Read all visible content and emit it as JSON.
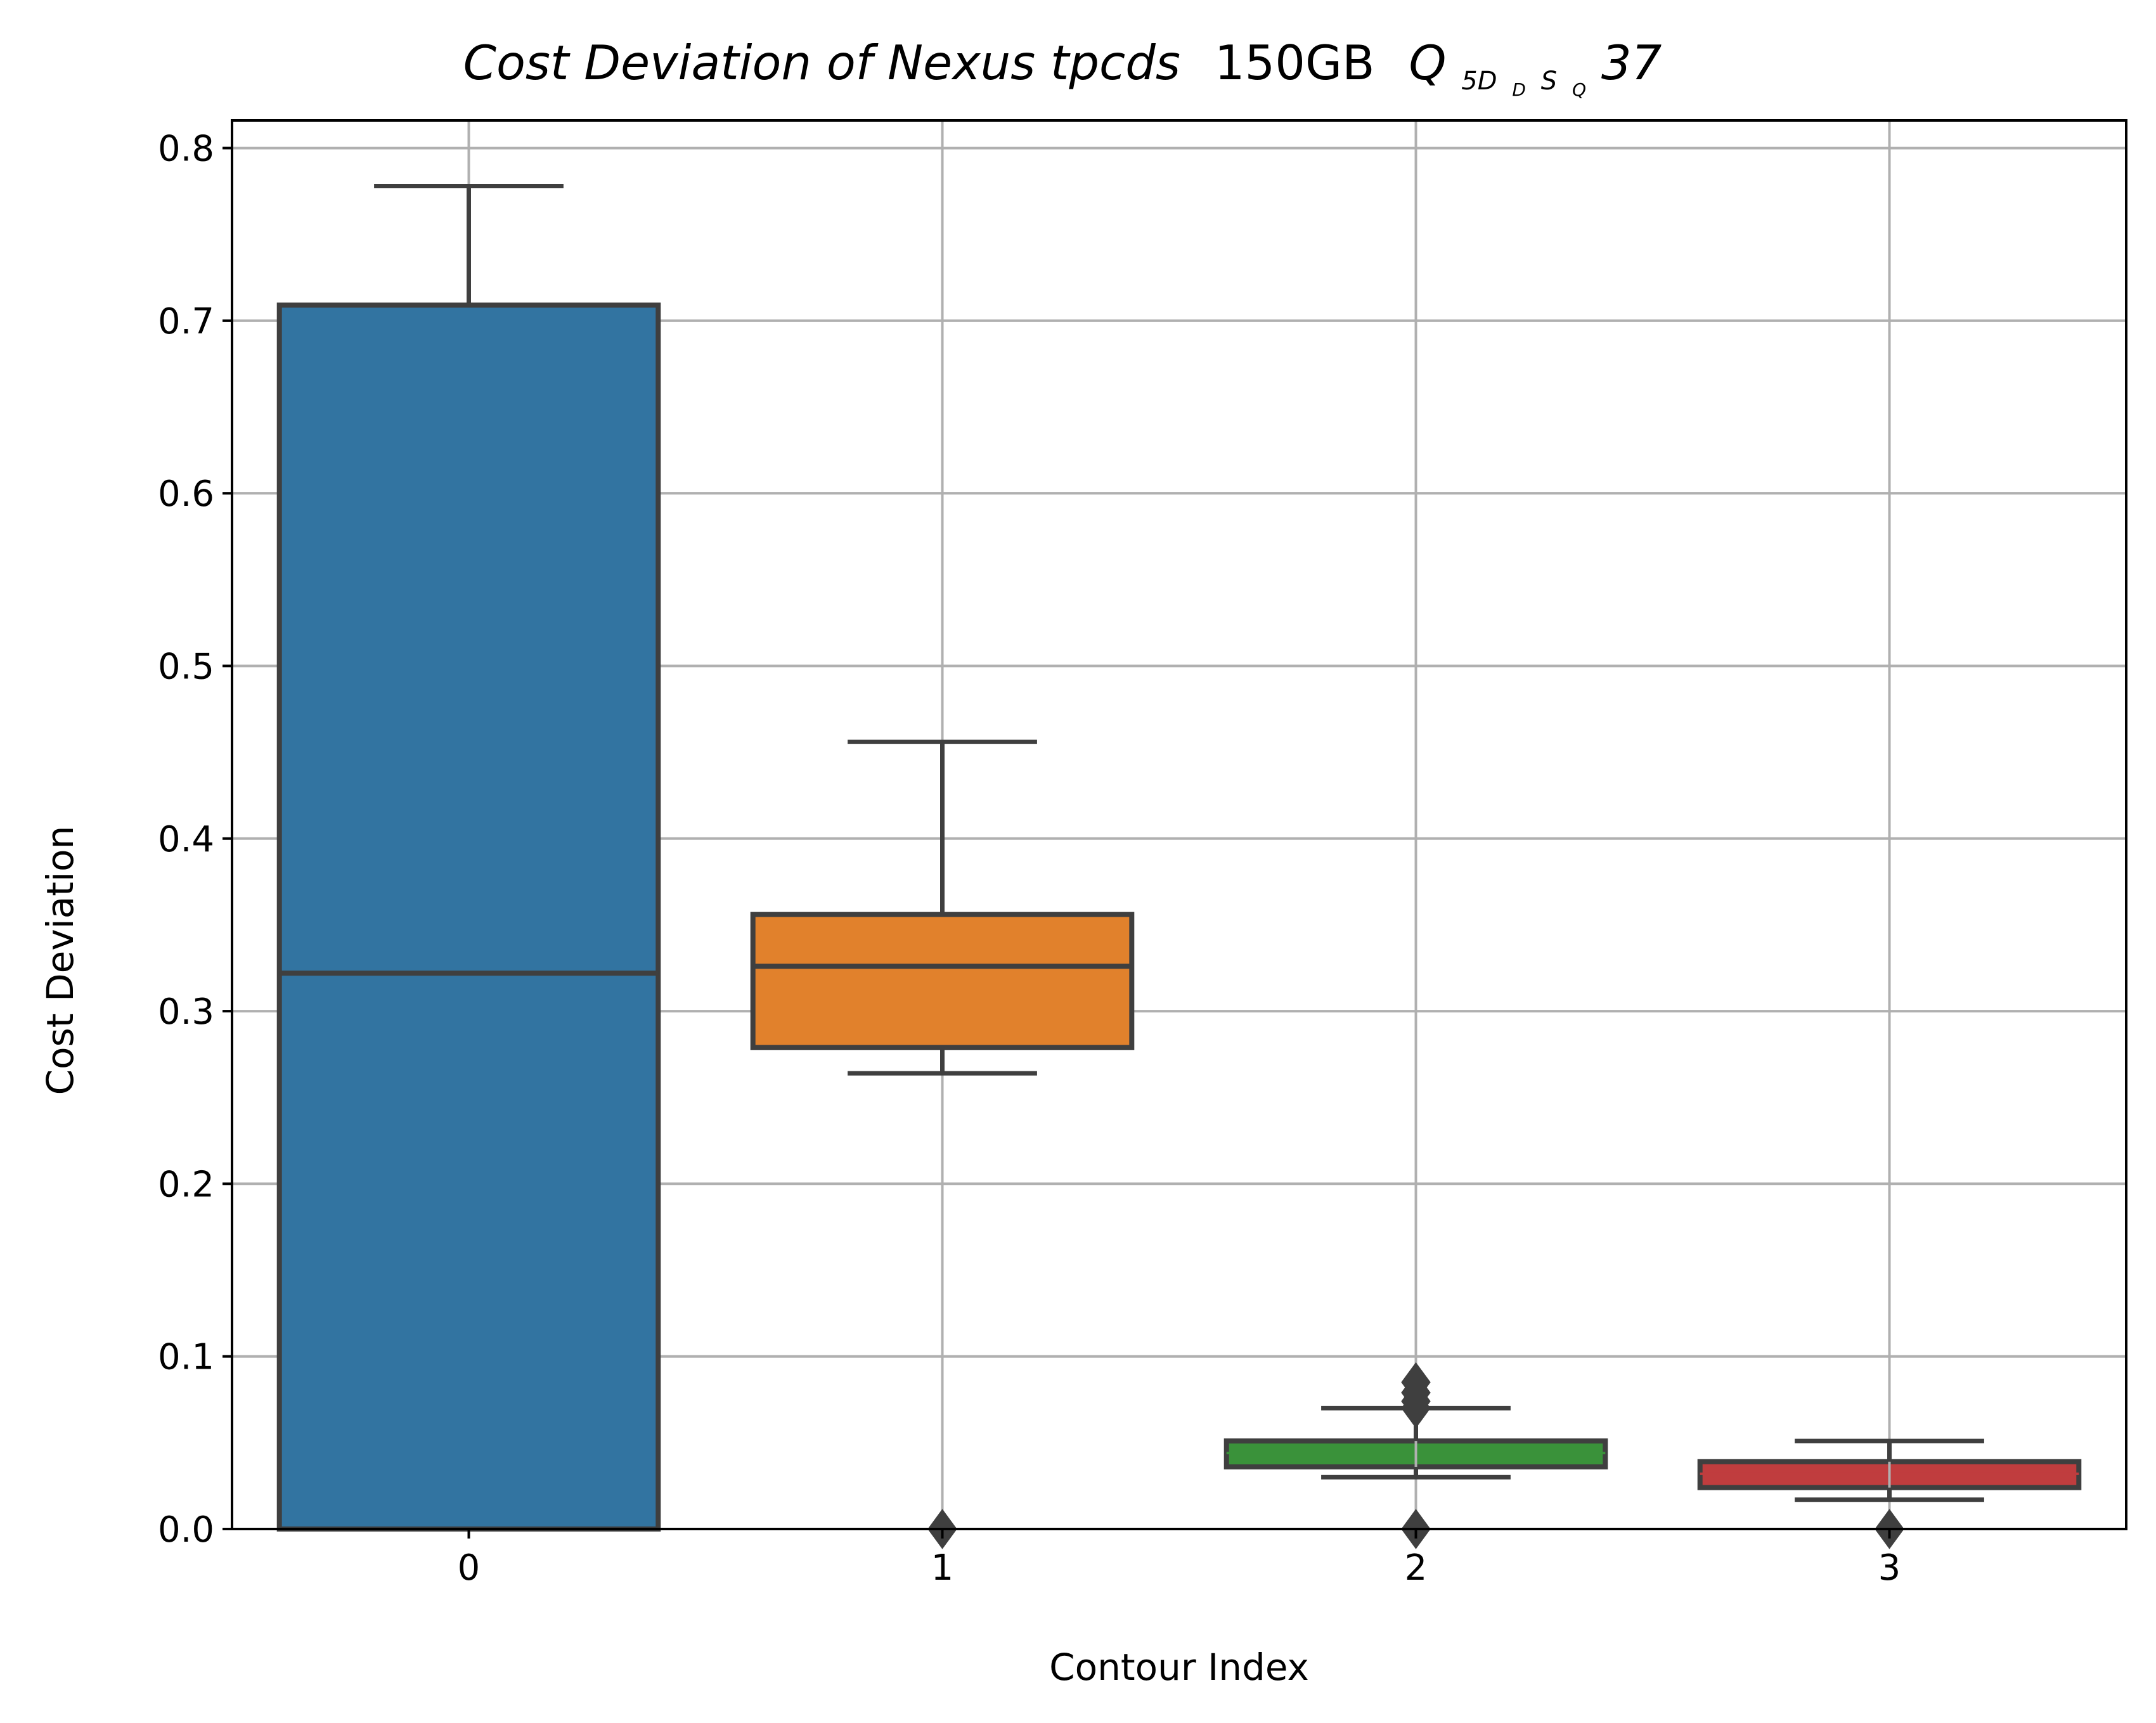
{
  "chart_data": {
    "type": "box",
    "title": {
      "main": "Cost Deviation of Nexus tpcds",
      "size": "150GB",
      "query_prefix": "Q",
      "query_sub_1": "5D",
      "query_sub_2": "D",
      "query_sub_3": "S",
      "query_sub_4": "Q",
      "query_suffix": "37"
    },
    "xlabel": "Contour Index",
    "ylabel": "Cost Deviation",
    "ylim": [
      0.0,
      0.816
    ],
    "yticks": [
      "0.0",
      "0.1",
      "0.2",
      "0.3",
      "0.4",
      "0.5",
      "0.6",
      "0.7",
      "0.8"
    ],
    "categories": [
      "0",
      "1",
      "2",
      "3"
    ],
    "grid": true,
    "boxes": [
      {
        "category": "0",
        "color": "#3274a1",
        "q1": 0.0,
        "median": 0.322,
        "q3": 0.709,
        "whisker_low": 0.0,
        "whisker_high": 0.778,
        "fliers": []
      },
      {
        "category": "1",
        "color": "#e1812c",
        "q1": 0.279,
        "median": 0.326,
        "q3": 0.356,
        "whisker_low": 0.264,
        "whisker_high": 0.456,
        "fliers": [
          0.0
        ]
      },
      {
        "category": "2",
        "color": "#3a923a",
        "q1": 0.036,
        "median": 0.044,
        "q3": 0.051,
        "whisker_low": 0.03,
        "whisker_high": 0.07,
        "fliers": [
          0.0,
          0.07,
          0.074,
          0.079,
          0.085
        ]
      },
      {
        "category": "3",
        "color": "#c03d3e",
        "q1": 0.024,
        "median": 0.032,
        "q3": 0.039,
        "whisker_low": 0.017,
        "whisker_high": 0.051,
        "fliers": [
          0.0
        ]
      }
    ]
  }
}
